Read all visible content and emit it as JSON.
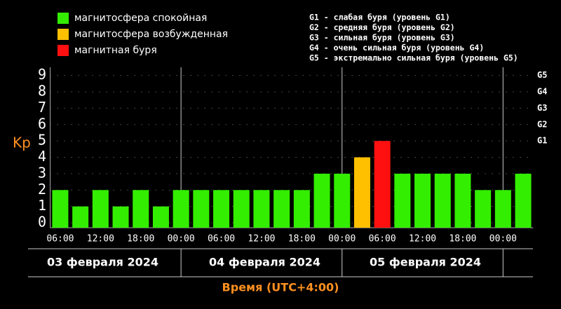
{
  "chart_data": {
    "type": "bar",
    "legend": [
      {
        "name": "магнитосфера спокойная",
        "color": "#33ee00"
      },
      {
        "name": "магнитосфера возбужденная",
        "color": "#ffc000"
      },
      {
        "name": "магнитная буря",
        "color": "#ff1010"
      }
    ],
    "storm_levels": [
      "G1 - слабая буря (уровень G1)",
      "G2 - средняя буря (уровень G2)",
      "G3 - сильная буря (уровень G3)",
      "G4 - очень сильная буря (уровень G4)",
      "G5 - экстремально сильная буря (уровень G5)"
    ],
    "ylabel": "Kp",
    "xlabel": "Время (UTC+4:00)",
    "categories": [
      null,
      null,
      null,
      null,
      null,
      null,
      null,
      null,
      null,
      null,
      null,
      null,
      null,
      null,
      null,
      null,
      null,
      null,
      null,
      null,
      null,
      null,
      null,
      null
    ],
    "values": [
      2,
      1,
      2,
      1,
      2,
      1,
      2,
      2,
      2,
      2,
      2,
      2,
      2,
      3,
      3,
      4,
      5,
      3,
      3,
      3,
      3,
      2,
      2,
      3
    ],
    "colors": [
      "#33ee00",
      "#33ee00",
      "#33ee00",
      "#33ee00",
      "#33ee00",
      "#33ee00",
      "#33ee00",
      "#33ee00",
      "#33ee00",
      "#33ee00",
      "#33ee00",
      "#33ee00",
      "#33ee00",
      "#33ee00",
      "#33ee00",
      "#ffc000",
      "#ff1010",
      "#33ee00",
      "#33ee00",
      "#33ee00",
      "#33ee00",
      "#33ee00",
      "#33ee00",
      "#33ee00"
    ],
    "time_labels": [
      "06:00",
      "12:00",
      "18:00",
      "00:00",
      "06:00",
      "12:00",
      "18:00",
      "00:00",
      "06:00",
      "12:00",
      "18:00",
      "00:00"
    ],
    "dates": [
      "03 февраля 2024",
      "04 февраля 2024",
      "05 февраля 2024"
    ],
    "ylim": [
      -0.3,
      9.5
    ],
    "yticks": [
      0,
      1,
      2,
      3,
      4,
      5,
      6,
      7,
      8,
      9
    ],
    "y2ticks": [
      {
        "value": 5,
        "label": "G1"
      },
      {
        "value": 6,
        "label": "G2"
      },
      {
        "value": 7,
        "label": "G3"
      },
      {
        "value": 8,
        "label": "G4"
      },
      {
        "value": 9,
        "label": "G5"
      }
    ],
    "grid": true
  }
}
